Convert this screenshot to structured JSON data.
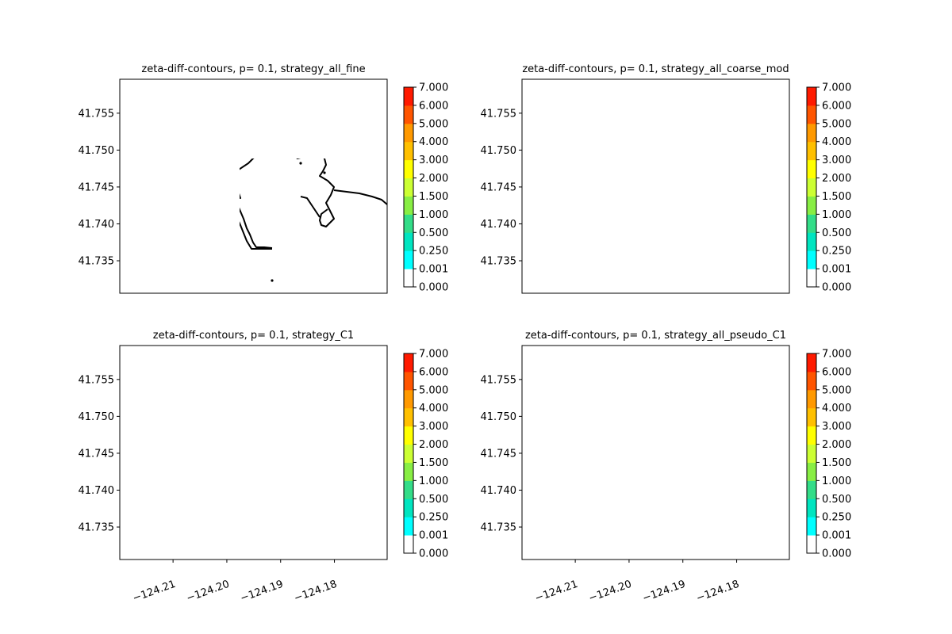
{
  "figure": {
    "background": "#ffffff",
    "coast_color": "#000000"
  },
  "colorbar": {
    "levels": [
      0.0,
      0.001,
      0.25,
      0.5,
      1.0,
      1.5,
      2.0,
      3.0,
      4.0,
      5.0,
      6.0,
      7.0
    ],
    "tick_labels": [
      "0.000",
      "0.001",
      "0.250",
      "0.500",
      "1.000",
      "1.500",
      "2.000",
      "3.000",
      "4.000",
      "5.000",
      "6.000",
      "7.000"
    ],
    "colors": [
      "#ffffff",
      "#00ffff",
      "#00e5c0",
      "#33dd88",
      "#88ee44",
      "#ccff33",
      "#ffff00",
      "#ffc000",
      "#ff9900",
      "#ff5500",
      "#ff1a00"
    ]
  },
  "chart_data": [
    {
      "type": "contour",
      "title": "zeta-diff-contours, p= 0.1, strategy_all_fine",
      "ylabel": "",
      "xlabel": "",
      "xlim": [
        -124.2199,
        -124.1702
      ],
      "ylim": [
        41.7306,
        41.7596
      ],
      "yticks": [
        41.735,
        41.74,
        41.745,
        41.75,
        41.755
      ],
      "ytick_labels": [
        "41.735",
        "41.740",
        "41.745",
        "41.750",
        "41.755"
      ],
      "xticks": [],
      "xtick_labels": [],
      "contour_values_present": "none visible (all below 0.001)"
    },
    {
      "type": "contour",
      "title": "zeta-diff-contours, p= 0.1, strategy_all_coarse_mod",
      "ylabel": "",
      "xlabel": "",
      "xlim": [
        -124.2199,
        -124.1702
      ],
      "ylim": [
        41.7306,
        41.7596
      ],
      "yticks": [
        41.735,
        41.74,
        41.745,
        41.75,
        41.755
      ],
      "ytick_labels": [
        "41.735",
        "41.740",
        "41.745",
        "41.750",
        "41.755"
      ],
      "xticks": [],
      "xtick_labels": [],
      "contour_values_present": "none visible (all below 0.001)"
    },
    {
      "type": "contour",
      "title": "zeta-diff-contours, p= 0.1, strategy_C1",
      "ylabel": "",
      "xlabel": "",
      "xlim": [
        -124.2199,
        -124.1702
      ],
      "ylim": [
        41.7306,
        41.7596
      ],
      "yticks": [
        41.735,
        41.74,
        41.745,
        41.75,
        41.755
      ],
      "ytick_labels": [
        "41.735",
        "41.740",
        "41.745",
        "41.750",
        "41.755"
      ],
      "xticks": [
        -124.21,
        -124.2,
        -124.19,
        -124.18
      ],
      "xtick_labels": [
        "−124.21",
        "−124.20",
        "−124.19",
        "−124.18"
      ],
      "contour_values_present": "none visible (all below 0.001)"
    },
    {
      "type": "contour",
      "title": "zeta-diff-contours, p= 0.1, strategy_all_pseudo_C1",
      "ylabel": "",
      "xlabel": "",
      "xlim": [
        -124.2199,
        -124.1702
      ],
      "ylim": [
        41.7306,
        41.7596
      ],
      "yticks": [
        41.735,
        41.74,
        41.745,
        41.75,
        41.755
      ],
      "ytick_labels": [
        "41.735",
        "41.740",
        "41.745",
        "41.750",
        "41.755"
      ],
      "xticks": [
        -124.21,
        -124.2,
        -124.19,
        -124.18
      ],
      "xtick_labels": [
        "−124.21",
        "−124.20",
        "−124.19",
        "−124.18"
      ],
      "contour_values_present": "none visible (all below 0.001)"
    }
  ]
}
